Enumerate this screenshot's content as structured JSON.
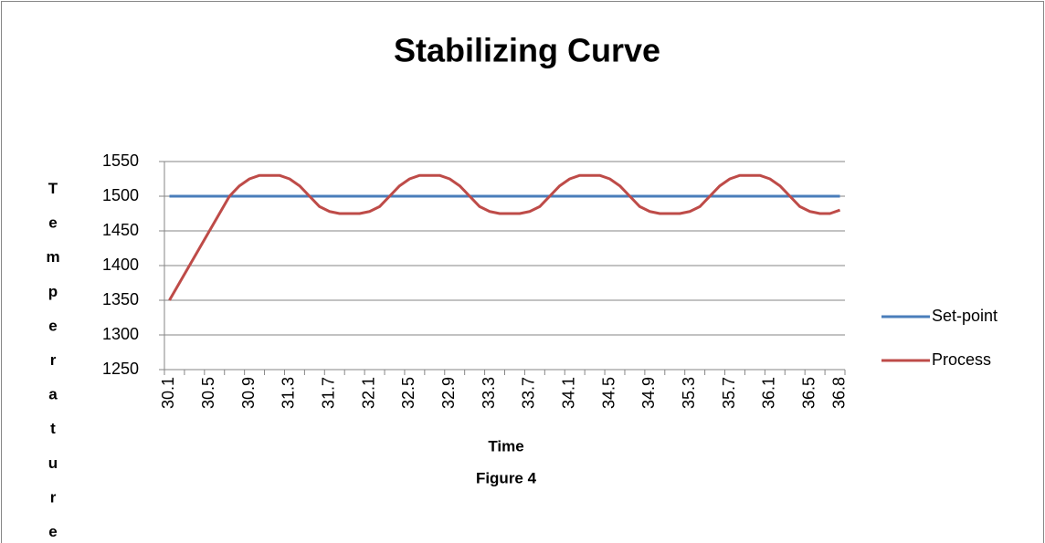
{
  "chart_data": {
    "type": "line",
    "title": "Stabilizing Curve",
    "x_label": "Time",
    "caption": "Figure 4",
    "y_label": "Temperature",
    "categories": [
      "30.1",
      null,
      null,
      null,
      "30.5",
      null,
      null,
      null,
      "30.9",
      null,
      null,
      null,
      "31.3",
      null,
      null,
      null,
      "31.7",
      null,
      null,
      null,
      "32.1",
      null,
      null,
      null,
      "32.5",
      null,
      null,
      null,
      "32.9",
      null,
      null,
      null,
      "33.3",
      null,
      null,
      null,
      "33.7",
      null,
      null,
      null,
      "34.1",
      null,
      null,
      null,
      "34.5",
      null,
      null,
      null,
      "34.9",
      null,
      null,
      null,
      "35.3",
      null,
      null,
      null,
      "35.7",
      null,
      null,
      null,
      "36.1",
      null,
      null,
      null,
      "36.5",
      null,
      null,
      "36.8"
    ],
    "series": [
      {
        "name": "Set-point",
        "color": "#4a7ebb",
        "values": [
          1500,
          1500,
          1500,
          1500,
          1500,
          1500,
          1500,
          1500,
          1500,
          1500,
          1500,
          1500,
          1500,
          1500,
          1500,
          1500,
          1500,
          1500,
          1500,
          1500,
          1500,
          1500,
          1500,
          1500,
          1500,
          1500,
          1500,
          1500,
          1500,
          1500,
          1500,
          1500,
          1500,
          1500,
          1500,
          1500,
          1500,
          1500,
          1500,
          1500,
          1500,
          1500,
          1500,
          1500,
          1500,
          1500,
          1500,
          1500,
          1500,
          1500,
          1500,
          1500,
          1500,
          1500,
          1500,
          1500,
          1500,
          1500,
          1500,
          1500,
          1500,
          1500,
          1500,
          1500,
          1500,
          1500,
          1500,
          1500
        ]
      },
      {
        "name": "Process",
        "color": "#be4b48",
        "values": [
          1350,
          1375,
          1400,
          1425,
          1450,
          1475,
          1500,
          1515,
          1525,
          1530,
          1530,
          1530,
          1525,
          1515,
          1500,
          1485,
          1478,
          1475,
          1475,
          1475,
          1478,
          1485,
          1500,
          1515,
          1525,
          1530,
          1530,
          1530,
          1525,
          1515,
          1500,
          1485,
          1478,
          1475,
          1475,
          1475,
          1478,
          1485,
          1500,
          1515,
          1525,
          1530,
          1530,
          1530,
          1525,
          1515,
          1500,
          1485,
          1478,
          1475,
          1475,
          1475,
          1478,
          1485,
          1500,
          1515,
          1525,
          1530,
          1530,
          1530,
          1525,
          1515,
          1500,
          1485,
          1478,
          1475,
          1475,
          1480
        ]
      }
    ],
    "ylim": [
      1250,
      1550
    ],
    "yticks": [
      1250,
      1300,
      1350,
      1400,
      1450,
      1500,
      1550
    ],
    "grid": true,
    "legend": "right"
  }
}
